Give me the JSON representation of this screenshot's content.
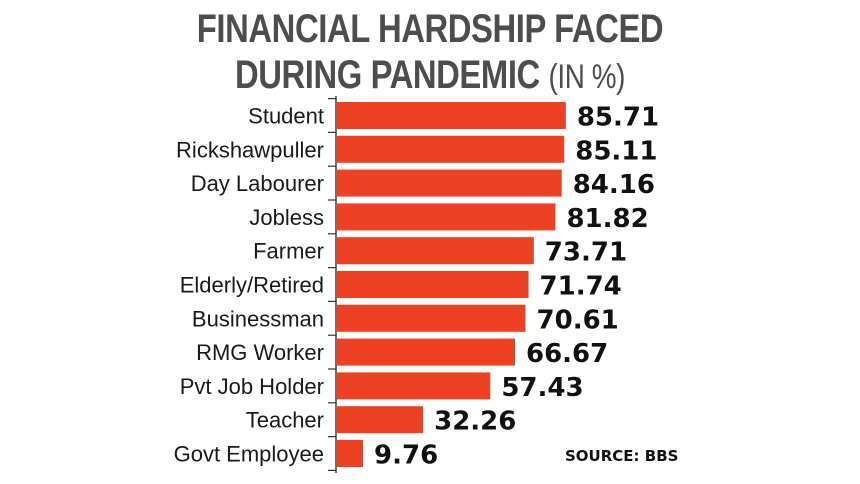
{
  "chart_data": {
    "type": "bar",
    "orientation": "horizontal",
    "title_line1": "FINANCIAL HARDSHIP FACED",
    "title_line2": "DURING PANDEMIC",
    "title_unit": "(IN %)",
    "categories": [
      "Student",
      "Rickshawpuller",
      "Day Labourer",
      "Jobless",
      "Farmer",
      "Elderly/Retired",
      "Businessman",
      "RMG Worker",
      "Pvt Job Holder",
      "Teacher",
      "Govt Employee"
    ],
    "values": [
      85.71,
      85.11,
      84.16,
      81.82,
      73.71,
      71.74,
      70.61,
      66.67,
      57.43,
      32.26,
      9.76
    ],
    "value_labels": [
      "85.71",
      "85.11",
      "84.16",
      "81.82",
      "73.71",
      "71.74",
      "70.61",
      "66.67",
      "57.43",
      "32.26",
      "9.76"
    ],
    "xlim": [
      0,
      100
    ],
    "bar_color": "#ee4023",
    "grid": false,
    "source": "SOURCE: BBS"
  }
}
